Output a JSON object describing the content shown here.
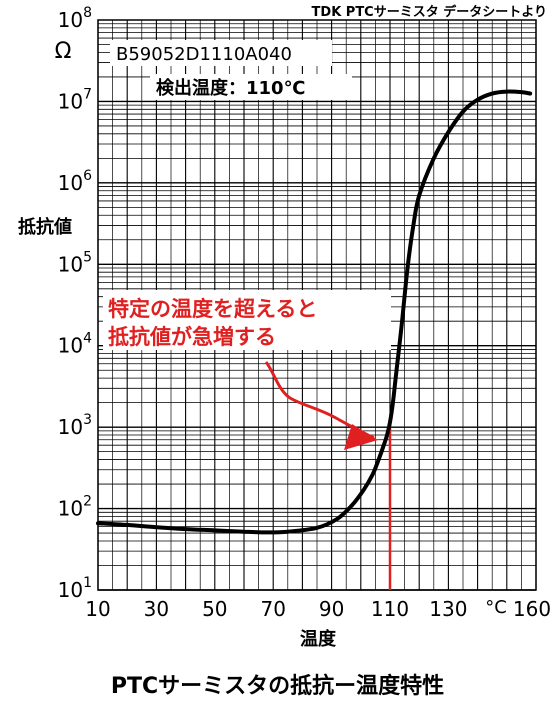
{
  "chart_data": {
    "type": "line",
    "source_note": "TDK PTCサーミスタ データシートより",
    "part_number": "B59052D1110A040",
    "detect_label": "検出温度：110℃",
    "callout": [
      "特定の温度を超えると",
      "抵抗値が急増する"
    ],
    "ylabel": "抵抗値",
    "yunit": "Ω",
    "xlabel": "温度",
    "xunit": "°C",
    "yscale": "log",
    "xlim": [
      10,
      160
    ],
    "ylim": [
      10,
      100000000
    ],
    "x_ticks": [
      "10",
      "30",
      "50",
      "70",
      "90",
      "110",
      "130",
      "160"
    ],
    "y_ticks": [
      {
        "base": "10",
        "exp": "1"
      },
      {
        "base": "10",
        "exp": "2"
      },
      {
        "base": "10",
        "exp": "3"
      },
      {
        "base": "10",
        "exp": "4"
      },
      {
        "base": "10",
        "exp": "5"
      },
      {
        "base": "10",
        "exp": "6"
      },
      {
        "base": "10",
        "exp": "7"
      },
      {
        "base": "10",
        "exp": "8"
      }
    ],
    "grid": true,
    "line_color": "#000000",
    "highlight_color": "#e02020",
    "detect_temperature": 110,
    "series": [
      {
        "x": [
          10,
          20,
          30,
          40,
          50,
          60,
          68,
          75,
          85,
          92,
          97,
          101,
          104,
          106,
          108,
          109,
          110,
          111,
          112,
          114,
          116,
          118,
          120,
          125,
          130,
          135,
          140,
          145,
          150,
          155,
          158
        ],
        "y": [
          66,
          63,
          59,
          56,
          54,
          52,
          51,
          52,
          58,
          75,
          110,
          170,
          260,
          390,
          620,
          800,
          1150,
          2000,
          4200,
          18000,
          90000,
          300000,
          700000,
          2000000,
          4200000,
          7500000,
          10500000,
          12500000,
          13200000,
          13000000,
          12500000
        ]
      }
    ]
  },
  "footer": {
    "title": "PTCサーミスタの抵抗ー温度特性"
  }
}
